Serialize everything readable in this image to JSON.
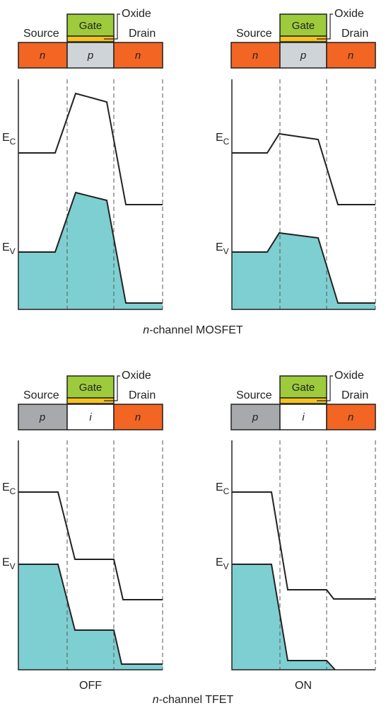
{
  "labels": {
    "gate": "Gate",
    "oxide": "Oxide",
    "source": "Source",
    "drain": "Drain",
    "ec_main": "E",
    "ec_sub": "C",
    "ev_main": "E",
    "ev_sub": "V"
  },
  "captions": {
    "mosfet_italic": "n",
    "mosfet_rest": "-channel MOSFET",
    "tfet_italic": "n",
    "tfet_rest": "-channel TFET",
    "off": "OFF",
    "on": "ON"
  },
  "devices": {
    "mosfet": {
      "segments": [
        "n",
        "p",
        "n"
      ]
    },
    "tfet": {
      "segments": [
        "p",
        "i",
        "n"
      ]
    }
  },
  "colors": {
    "n_region": "#f26522",
    "p_region_mosfet": "#cfd4d8",
    "p_region_tfet": "#a7a9ac",
    "i_region": "#ffffff",
    "gate": "#9dcb3c",
    "oxide": "#f7c21c",
    "valence_fill": "#7ecfd1",
    "line": "#222222",
    "dash": "#555555"
  },
  "panels": [
    {
      "id": "mosfet-off",
      "device": "mosfet",
      "state": "off"
    },
    {
      "id": "mosfet-on",
      "device": "mosfet",
      "state": "on"
    },
    {
      "id": "tfet-off",
      "device": "tfet",
      "state": "off"
    },
    {
      "id": "tfet-on",
      "device": "tfet",
      "state": "on"
    }
  ]
}
